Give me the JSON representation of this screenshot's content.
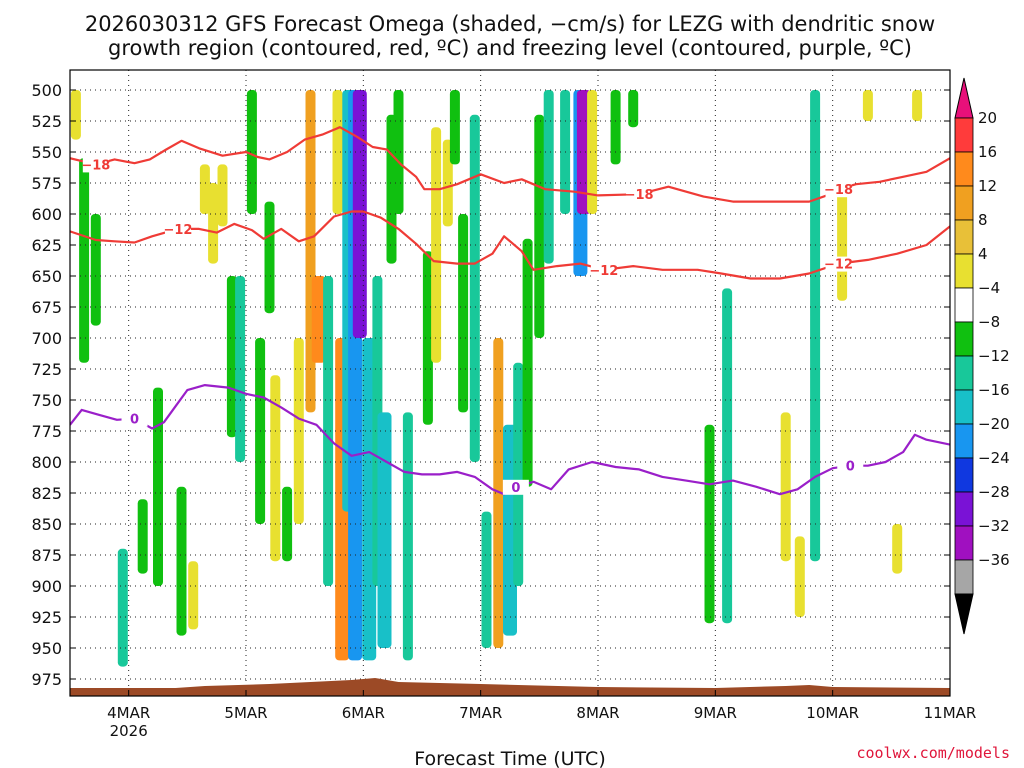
{
  "title_line1": "2026030312 GFS Forecast Omega (shaded, −cm/s) for LEZG with dendritic snow",
  "title_line2": "growth region (contoured, red, ºC) and freezing level (contoured, purple, ºC)",
  "x_axis_label": "Forecast Time (UTC)",
  "credit": "coolwx.com/models",
  "colors": {
    "snow_contour": "#ef3b36",
    "freezing_contour": "#9a1fc9",
    "terrain": "#9c4a26"
  },
  "chart_data": {
    "type": "heatmap",
    "y_ticks": [
      500,
      525,
      550,
      575,
      600,
      625,
      650,
      675,
      700,
      725,
      750,
      775,
      800,
      825,
      850,
      875,
      900,
      925,
      950,
      975
    ],
    "y_range": [
      975,
      500
    ],
    "x_ticks": [
      {
        "day": 1,
        "label": "4MAR",
        "sub": "2026"
      },
      {
        "day": 2,
        "label": "5MAR",
        "sub": ""
      },
      {
        "day": 3,
        "label": "6MAR",
        "sub": ""
      },
      {
        "day": 4,
        "label": "7MAR",
        "sub": ""
      },
      {
        "day": 5,
        "label": "8MAR",
        "sub": ""
      },
      {
        "day": 6,
        "label": "9MAR",
        "sub": ""
      },
      {
        "day": 7,
        "label": "10MAR",
        "sub": ""
      },
      {
        "day": 8,
        "label": "11MAR",
        "sub": ""
      }
    ],
    "x_range": [
      0.5,
      8
    ],
    "grid": true,
    "colorbar": {
      "ticks": [
        "20",
        "16",
        "12",
        "8",
        "4",
        "−4",
        "−8",
        "−12",
        "−16",
        "−20",
        "−24",
        "−28",
        "−32",
        "−36"
      ],
      "colors_top_to_bottom": [
        "#ff3b3b",
        "#ff8a1c",
        "#f0a020",
        "#e8c038",
        "#e8e030",
        "#ffffff",
        "#10c010",
        "#18c89a",
        "#18c0c8",
        "#1896f0",
        "#1038e0",
        "#7a12d6",
        "#a010c0",
        "#a6a6a6"
      ],
      "top_arrow": "#e8107a",
      "bottom_arrow": "#000000"
    },
    "contours": [
      {
        "label": "−18",
        "label_at": [
          0.65,
          5.42,
          7.05
        ],
        "points": [
          [
            0.5,
            555
          ],
          [
            0.72,
            560
          ],
          [
            0.88,
            556
          ],
          [
            1.05,
            559
          ],
          [
            1.18,
            556
          ],
          [
            1.32,
            548
          ],
          [
            1.45,
            541
          ],
          [
            1.6,
            547
          ],
          [
            1.8,
            553
          ],
          [
            2.0,
            550
          ],
          [
            2.1,
            554
          ],
          [
            2.2,
            556
          ],
          [
            2.35,
            550
          ],
          [
            2.5,
            540
          ],
          [
            2.65,
            536
          ],
          [
            2.8,
            530
          ],
          [
            2.95,
            538
          ],
          [
            3.08,
            546
          ],
          [
            3.2,
            548
          ],
          [
            3.32,
            560
          ],
          [
            3.45,
            570
          ],
          [
            3.52,
            580
          ],
          [
            3.65,
            580
          ],
          [
            3.8,
            576
          ],
          [
            4.0,
            568
          ],
          [
            4.2,
            575
          ],
          [
            4.35,
            572
          ],
          [
            4.55,
            580
          ],
          [
            4.8,
            582
          ],
          [
            5.0,
            585
          ],
          [
            5.35,
            584
          ],
          [
            5.6,
            578
          ],
          [
            5.9,
            586
          ],
          [
            6.15,
            590
          ],
          [
            6.55,
            590
          ],
          [
            6.8,
            590
          ],
          [
            6.95,
            585
          ],
          [
            7.05,
            580
          ],
          [
            7.2,
            576
          ],
          [
            7.4,
            574
          ],
          [
            7.6,
            570
          ],
          [
            7.8,
            566
          ],
          [
            8.0,
            555
          ]
        ]
      },
      {
        "label": "−12",
        "label_at": [
          1.4,
          5.0,
          7.05
        ],
        "points": [
          [
            0.5,
            614
          ],
          [
            0.72,
            621
          ],
          [
            0.88,
            622
          ],
          [
            1.05,
            623
          ],
          [
            1.2,
            618
          ],
          [
            1.42,
            612
          ],
          [
            1.6,
            612
          ],
          [
            1.75,
            615
          ],
          [
            1.9,
            608
          ],
          [
            2.05,
            613
          ],
          [
            2.15,
            620
          ],
          [
            2.3,
            612
          ],
          [
            2.45,
            622
          ],
          [
            2.58,
            618
          ],
          [
            2.75,
            602
          ],
          [
            2.9,
            598
          ],
          [
            3.0,
            598
          ],
          [
            3.15,
            603
          ],
          [
            3.3,
            612
          ],
          [
            3.45,
            624
          ],
          [
            3.6,
            638
          ],
          [
            3.8,
            640
          ],
          [
            3.95,
            640
          ],
          [
            4.1,
            632
          ],
          [
            4.2,
            618
          ],
          [
            4.35,
            630
          ],
          [
            4.45,
            645
          ],
          [
            4.65,
            642
          ],
          [
            4.85,
            640
          ],
          [
            5.05,
            645
          ],
          [
            5.3,
            642
          ],
          [
            5.55,
            645
          ],
          [
            5.85,
            645
          ],
          [
            6.05,
            648
          ],
          [
            6.3,
            652
          ],
          [
            6.55,
            652
          ],
          [
            6.8,
            648
          ],
          [
            7.05,
            640
          ],
          [
            7.3,
            637
          ],
          [
            7.55,
            632
          ],
          [
            7.8,
            625
          ],
          [
            8.0,
            610
          ]
        ]
      },
      {
        "label": "0",
        "label_at": [
          1.05,
          4.3,
          7.2
        ],
        "points": [
          [
            0.5,
            770
          ],
          [
            0.6,
            758
          ],
          [
            0.75,
            762
          ],
          [
            0.9,
            766
          ],
          [
            1.05,
            765
          ],
          [
            1.2,
            773
          ],
          [
            1.3,
            768
          ],
          [
            1.4,
            755
          ],
          [
            1.5,
            742
          ],
          [
            1.65,
            738
          ],
          [
            1.85,
            740
          ],
          [
            2.0,
            745
          ],
          [
            2.15,
            748
          ],
          [
            2.3,
            756
          ],
          [
            2.45,
            765
          ],
          [
            2.6,
            770
          ],
          [
            2.75,
            785
          ],
          [
            2.9,
            795
          ],
          [
            3.05,
            792
          ],
          [
            3.2,
            800
          ],
          [
            3.35,
            808
          ],
          [
            3.5,
            810
          ],
          [
            3.65,
            810
          ],
          [
            3.8,
            808
          ],
          [
            3.95,
            812
          ],
          [
            4.1,
            822
          ],
          [
            4.2,
            826
          ],
          [
            4.3,
            820
          ],
          [
            4.45,
            816
          ],
          [
            4.6,
            822
          ],
          [
            4.75,
            806
          ],
          [
            4.95,
            800
          ],
          [
            5.15,
            804
          ],
          [
            5.35,
            806
          ],
          [
            5.55,
            812
          ],
          [
            5.75,
            815
          ],
          [
            5.95,
            818
          ],
          [
            6.15,
            815
          ],
          [
            6.35,
            820
          ],
          [
            6.55,
            826
          ],
          [
            6.7,
            822
          ],
          [
            6.85,
            812
          ],
          [
            7.0,
            805
          ],
          [
            7.15,
            803
          ],
          [
            7.3,
            803
          ],
          [
            7.45,
            800
          ],
          [
            7.6,
            792
          ],
          [
            7.7,
            778
          ],
          [
            7.8,
            782
          ],
          [
            8.0,
            786
          ]
        ]
      }
    ],
    "omega_shading": [
      {
        "x": 0.55,
        "p0": 500,
        "p1": 540,
        "value": 6
      },
      {
        "x": 0.62,
        "p0": 555,
        "p1": 720,
        "value": -6
      },
      {
        "x": 0.72,
        "p0": 600,
        "p1": 690,
        "value": -6
      },
      {
        "x": 0.95,
        "p0": 870,
        "p1": 965,
        "value": -8
      },
      {
        "x": 1.12,
        "p0": 830,
        "p1": 890,
        "value": -6
      },
      {
        "x": 1.25,
        "p0": 740,
        "p1": 900,
        "value": -6
      },
      {
        "x": 1.45,
        "p0": 820,
        "p1": 940,
        "value": -6
      },
      {
        "x": 1.55,
        "p0": 880,
        "p1": 935,
        "value": 6
      },
      {
        "x": 1.65,
        "p0": 560,
        "p1": 600,
        "value": 6
      },
      {
        "x": 1.72,
        "p0": 575,
        "p1": 640,
        "value": 6
      },
      {
        "x": 1.8,
        "p0": 560,
        "p1": 610,
        "value": 6
      },
      {
        "x": 1.88,
        "p0": 650,
        "p1": 780,
        "value": -6
      },
      {
        "x": 1.95,
        "p0": 650,
        "p1": 800,
        "value": -8
      },
      {
        "x": 2.05,
        "p0": 500,
        "p1": 600,
        "value": -6
      },
      {
        "x": 2.12,
        "p0": 700,
        "p1": 850,
        "value": -6
      },
      {
        "x": 2.2,
        "p0": 590,
        "p1": 680,
        "value": -6
      },
      {
        "x": 2.25,
        "p0": 730,
        "p1": 880,
        "value": 6
      },
      {
        "x": 2.35,
        "p0": 820,
        "p1": 880,
        "value": -6
      },
      {
        "x": 2.45,
        "p0": 700,
        "p1": 850,
        "value": 6
      },
      {
        "x": 2.55,
        "p0": 500,
        "p1": 760,
        "value": 8
      },
      {
        "x": 2.62,
        "p0": 650,
        "p1": 720,
        "value": 12
      },
      {
        "x": 2.7,
        "p0": 650,
        "p1": 900,
        "value": -8
      },
      {
        "x": 2.78,
        "p0": 500,
        "p1": 600,
        "value": 6
      },
      {
        "x": 2.82,
        "p0": 700,
        "p1": 960,
        "value": 12
      },
      {
        "x": 2.88,
        "p0": 500,
        "p1": 840,
        "value": -12
      },
      {
        "x": 2.93,
        "p0": 500,
        "p1": 960,
        "value": -16
      },
      {
        "x": 2.97,
        "p0": 500,
        "p1": 700,
        "value": -24
      },
      {
        "x": 3.05,
        "p0": 700,
        "p1": 960,
        "value": -12
      },
      {
        "x": 3.12,
        "p0": 650,
        "p1": 900,
        "value": -8
      },
      {
        "x": 3.18,
        "p0": 760,
        "p1": 950,
        "value": -12
      },
      {
        "x": 3.24,
        "p0": 520,
        "p1": 640,
        "value": -6
      },
      {
        "x": 3.3,
        "p0": 500,
        "p1": 600,
        "value": -6
      },
      {
        "x": 3.38,
        "p0": 760,
        "p1": 960,
        "value": -8
      },
      {
        "x": 3.55,
        "p0": 630,
        "p1": 770,
        "value": -6
      },
      {
        "x": 3.62,
        "p0": 530,
        "p1": 720,
        "value": 6
      },
      {
        "x": 3.72,
        "p0": 540,
        "p1": 610,
        "value": 6
      },
      {
        "x": 3.78,
        "p0": 500,
        "p1": 560,
        "value": -6
      },
      {
        "x": 3.85,
        "p0": 600,
        "p1": 760,
        "value": -6
      },
      {
        "x": 3.95,
        "p0": 520,
        "p1": 800,
        "value": -8
      },
      {
        "x": 4.05,
        "p0": 840,
        "p1": 950,
        "value": -8
      },
      {
        "x": 4.15,
        "p0": 700,
        "p1": 950,
        "value": 8
      },
      {
        "x": 4.25,
        "p0": 770,
        "p1": 940,
        "value": -12
      },
      {
        "x": 4.32,
        "p0": 720,
        "p1": 900,
        "value": -8
      },
      {
        "x": 4.4,
        "p0": 620,
        "p1": 820,
        "value": -6
      },
      {
        "x": 4.5,
        "p0": 520,
        "p1": 700,
        "value": -6
      },
      {
        "x": 4.58,
        "p0": 500,
        "p1": 640,
        "value": -8
      },
      {
        "x": 4.72,
        "p0": 500,
        "p1": 600,
        "value": -8
      },
      {
        "x": 4.85,
        "p0": 500,
        "p1": 650,
        "value": -16
      },
      {
        "x": 4.88,
        "p0": 500,
        "p1": 600,
        "value": -28
      },
      {
        "x": 4.95,
        "p0": 500,
        "p1": 600,
        "value": 6
      },
      {
        "x": 5.15,
        "p0": 500,
        "p1": 560,
        "value": -6
      },
      {
        "x": 5.3,
        "p0": 500,
        "p1": 530,
        "value": -6
      },
      {
        "x": 5.95,
        "p0": 770,
        "p1": 930,
        "value": -6
      },
      {
        "x": 6.1,
        "p0": 660,
        "p1": 930,
        "value": -8
      },
      {
        "x": 6.6,
        "p0": 760,
        "p1": 880,
        "value": 6
      },
      {
        "x": 6.72,
        "p0": 860,
        "p1": 925,
        "value": 6
      },
      {
        "x": 6.85,
        "p0": 500,
        "p1": 880,
        "value": -8
      },
      {
        "x": 7.08,
        "p0": 580,
        "p1": 670,
        "value": 6
      },
      {
        "x": 7.3,
        "p0": 500,
        "p1": 525,
        "value": 6
      },
      {
        "x": 7.55,
        "p0": 850,
        "p1": 890,
        "value": 6
      },
      {
        "x": 7.72,
        "p0": 500,
        "p1": 525,
        "value": 6
      }
    ]
  }
}
